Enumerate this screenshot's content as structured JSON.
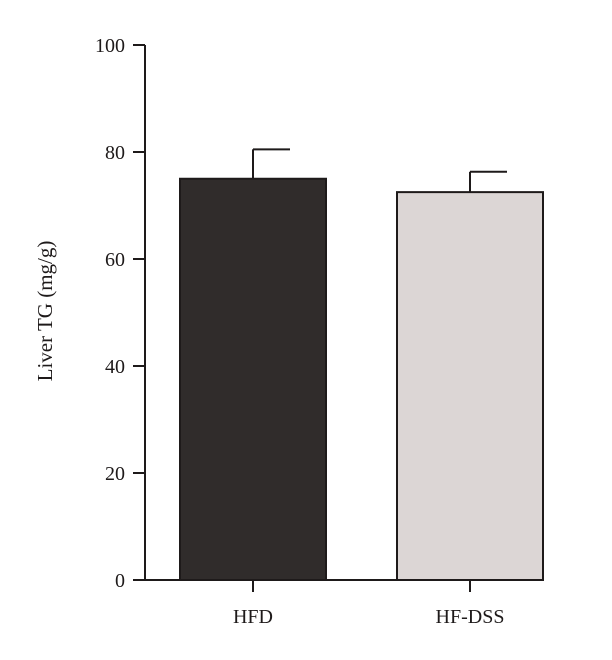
{
  "chart_data": {
    "type": "bar",
    "ylabel": "Liver TG (mg/g)",
    "categories": [
      "HFD",
      "HF-DSS"
    ],
    "values": [
      75,
      72.5
    ],
    "error": [
      5.5,
      3.8
    ],
    "ylim": [
      0,
      100
    ],
    "yticks": [
      0,
      20,
      40,
      60,
      80,
      100
    ],
    "colors": [
      "#302c2b",
      "#dcd6d5"
    ],
    "grid": false,
    "legend": false
  }
}
